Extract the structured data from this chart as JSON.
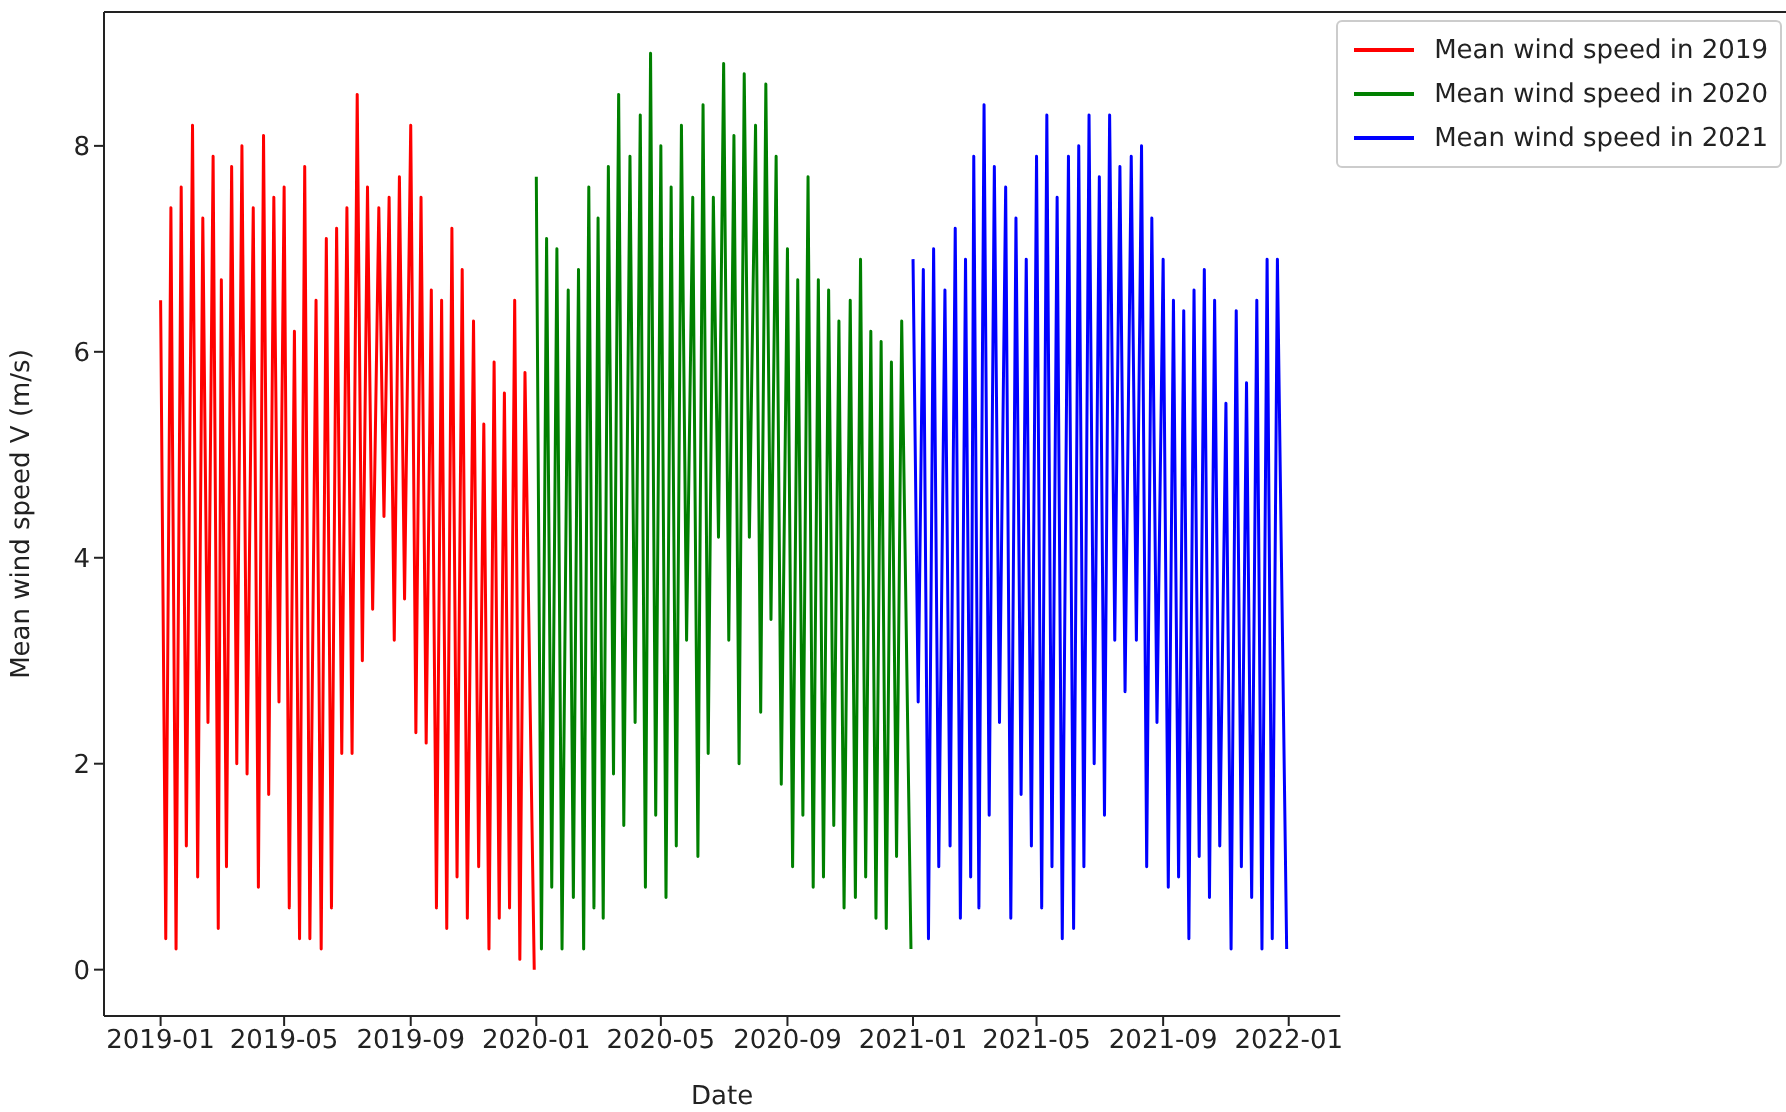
{
  "chart_data": {
    "type": "line",
    "xlabel": "Date",
    "ylabel": "Mean wind speed V (m/s)",
    "xlim": [
      "2018-11-07",
      "2022-02-20"
    ],
    "ylim": [
      -0.45,
      9.3
    ],
    "xticks": [
      "2019-01",
      "2019-05",
      "2019-09",
      "2020-01",
      "2020-05",
      "2020-09",
      "2021-01",
      "2021-05",
      "2021-09",
      "2022-01"
    ],
    "yticks": [
      0,
      2,
      4,
      6,
      8
    ],
    "legend": "top right",
    "grid": false,
    "series": [
      {
        "name": "Mean wind speed in 2019",
        "color": "#ff0000",
        "x": [
          "2019-01-01",
          "2019-01-06",
          "2019-01-11",
          "2019-01-16",
          "2019-01-21",
          "2019-01-26",
          "2019-02-01",
          "2019-02-06",
          "2019-02-11",
          "2019-02-16",
          "2019-02-21",
          "2019-02-26",
          "2019-03-01",
          "2019-03-06",
          "2019-03-11",
          "2019-03-16",
          "2019-03-21",
          "2019-03-26",
          "2019-04-01",
          "2019-04-06",
          "2019-04-11",
          "2019-04-16",
          "2019-04-21",
          "2019-04-26",
          "2019-05-01",
          "2019-05-06",
          "2019-05-11",
          "2019-05-16",
          "2019-05-21",
          "2019-05-26",
          "2019-06-01",
          "2019-06-06",
          "2019-06-11",
          "2019-06-16",
          "2019-06-21",
          "2019-06-26",
          "2019-07-01",
          "2019-07-06",
          "2019-07-11",
          "2019-07-16",
          "2019-07-21",
          "2019-07-26",
          "2019-08-01",
          "2019-08-06",
          "2019-08-11",
          "2019-08-16",
          "2019-08-21",
          "2019-08-26",
          "2019-09-01",
          "2019-09-06",
          "2019-09-11",
          "2019-09-16",
          "2019-09-21",
          "2019-09-26",
          "2019-10-01",
          "2019-10-06",
          "2019-10-11",
          "2019-10-16",
          "2019-10-21",
          "2019-10-26",
          "2019-11-01",
          "2019-11-06",
          "2019-11-11",
          "2019-11-16",
          "2019-11-21",
          "2019-11-26",
          "2019-12-01",
          "2019-12-06",
          "2019-12-11",
          "2019-12-16",
          "2019-12-21",
          "2019-12-30"
        ],
        "values": [
          6.5,
          0.3,
          7.4,
          0.2,
          7.6,
          1.2,
          8.2,
          0.9,
          7.3,
          2.4,
          7.9,
          0.4,
          6.7,
          1.0,
          7.8,
          2.0,
          8.0,
          1.9,
          7.4,
          0.8,
          8.1,
          1.7,
          7.5,
          2.6,
          7.6,
          0.6,
          6.2,
          0.3,
          7.8,
          0.3,
          6.5,
          0.2,
          7.1,
          0.6,
          7.2,
          2.1,
          7.4,
          2.1,
          8.5,
          3.0,
          7.6,
          3.5,
          7.4,
          4.4,
          7.5,
          3.2,
          7.7,
          3.6,
          8.2,
          2.3,
          7.5,
          2.2,
          6.6,
          0.6,
          6.5,
          0.4,
          7.2,
          0.9,
          6.8,
          0.5,
          6.3,
          1.0,
          5.3,
          0.2,
          5.9,
          0.5,
          5.6,
          0.6,
          6.5,
          0.1,
          5.8,
          0.0
        ]
      },
      {
        "name": "Mean wind speed in 2020",
        "color": "#008000",
        "x": [
          "2020-01-01",
          "2020-01-06",
          "2020-01-11",
          "2020-01-16",
          "2020-01-21",
          "2020-01-26",
          "2020-02-01",
          "2020-02-06",
          "2020-02-11",
          "2020-02-16",
          "2020-02-21",
          "2020-02-26",
          "2020-03-01",
          "2020-03-06",
          "2020-03-11",
          "2020-03-16",
          "2020-03-21",
          "2020-03-26",
          "2020-04-01",
          "2020-04-06",
          "2020-04-11",
          "2020-04-16",
          "2020-04-21",
          "2020-04-26",
          "2020-05-01",
          "2020-05-06",
          "2020-05-11",
          "2020-05-16",
          "2020-05-21",
          "2020-05-26",
          "2020-06-01",
          "2020-06-06",
          "2020-06-11",
          "2020-06-16",
          "2020-06-21",
          "2020-06-26",
          "2020-07-01",
          "2020-07-06",
          "2020-07-11",
          "2020-07-16",
          "2020-07-21",
          "2020-07-26",
          "2020-08-01",
          "2020-08-06",
          "2020-08-11",
          "2020-08-16",
          "2020-08-21",
          "2020-08-26",
          "2020-09-01",
          "2020-09-06",
          "2020-09-11",
          "2020-09-16",
          "2020-09-21",
          "2020-09-26",
          "2020-10-01",
          "2020-10-06",
          "2020-10-11",
          "2020-10-16",
          "2020-10-21",
          "2020-10-26",
          "2020-11-01",
          "2020-11-06",
          "2020-11-11",
          "2020-11-16",
          "2020-11-21",
          "2020-11-26",
          "2020-12-01",
          "2020-12-06",
          "2020-12-11",
          "2020-12-16",
          "2020-12-21",
          "2020-12-30"
        ],
        "values": [
          7.7,
          0.2,
          7.1,
          0.8,
          7.0,
          0.2,
          6.6,
          0.7,
          6.8,
          0.2,
          7.6,
          0.6,
          7.3,
          0.5,
          7.8,
          1.9,
          8.5,
          1.4,
          7.9,
          2.4,
          8.3,
          0.8,
          8.9,
          1.5,
          8.0,
          0.7,
          7.6,
          1.2,
          8.2,
          3.2,
          7.5,
          1.1,
          8.4,
          2.1,
          7.5,
          4.2,
          8.8,
          3.2,
          8.1,
          2.0,
          8.7,
          4.2,
          8.2,
          2.5,
          8.6,
          3.4,
          7.9,
          1.8,
          7.0,
          1.0,
          6.7,
          1.5,
          7.7,
          0.8,
          6.7,
          0.9,
          6.6,
          1.4,
          6.3,
          0.6,
          6.5,
          0.7,
          6.9,
          0.9,
          6.2,
          0.5,
          6.1,
          0.4,
          5.9,
          1.1,
          6.3,
          0.2
        ]
      },
      {
        "name": "Mean wind speed in 2021",
        "color": "#0000ff",
        "x": [
          "2021-01-01",
          "2021-01-06",
          "2021-01-11",
          "2021-01-16",
          "2021-01-21",
          "2021-01-26",
          "2021-02-01",
          "2021-02-06",
          "2021-02-11",
          "2021-02-16",
          "2021-02-21",
          "2021-02-26",
          "2021-03-01",
          "2021-03-06",
          "2021-03-11",
          "2021-03-16",
          "2021-03-21",
          "2021-03-26",
          "2021-04-01",
          "2021-04-06",
          "2021-04-11",
          "2021-04-16",
          "2021-04-21",
          "2021-04-26",
          "2021-05-01",
          "2021-05-06",
          "2021-05-11",
          "2021-05-16",
          "2021-05-21",
          "2021-05-26",
          "2021-06-01",
          "2021-06-06",
          "2021-06-11",
          "2021-06-16",
          "2021-06-21",
          "2021-06-26",
          "2021-07-01",
          "2021-07-06",
          "2021-07-11",
          "2021-07-16",
          "2021-07-21",
          "2021-07-26",
          "2021-08-01",
          "2021-08-06",
          "2021-08-11",
          "2021-08-16",
          "2021-08-21",
          "2021-08-26",
          "2021-09-01",
          "2021-09-06",
          "2021-09-11",
          "2021-09-16",
          "2021-09-21",
          "2021-09-26",
          "2021-10-01",
          "2021-10-06",
          "2021-10-11",
          "2021-10-16",
          "2021-10-21",
          "2021-10-26",
          "2021-11-01",
          "2021-11-06",
          "2021-11-11",
          "2021-11-16",
          "2021-11-21",
          "2021-11-26",
          "2021-12-01",
          "2021-12-06",
          "2021-12-11",
          "2021-12-16",
          "2021-12-21",
          "2021-12-30"
        ],
        "values": [
          6.9,
          2.6,
          6.8,
          0.3,
          7.0,
          1.0,
          6.6,
          1.2,
          7.2,
          0.5,
          6.9,
          0.9,
          7.9,
          0.6,
          8.4,
          1.5,
          7.8,
          2.4,
          7.6,
          0.5,
          7.3,
          1.7,
          6.9,
          1.2,
          7.9,
          0.6,
          8.3,
          1.0,
          7.5,
          0.3,
          7.9,
          0.4,
          8.0,
          1.0,
          8.3,
          2.0,
          7.7,
          1.5,
          8.3,
          3.2,
          7.8,
          2.7,
          7.9,
          3.2,
          8.0,
          1.0,
          7.3,
          2.4,
          6.9,
          0.8,
          6.5,
          0.9,
          6.4,
          0.3,
          6.6,
          1.1,
          6.8,
          0.7,
          6.5,
          1.2,
          5.5,
          0.2,
          6.4,
          1.0,
          5.7,
          0.7,
          6.5,
          0.2,
          6.9,
          0.3,
          6.9,
          0.2
        ]
      }
    ]
  }
}
